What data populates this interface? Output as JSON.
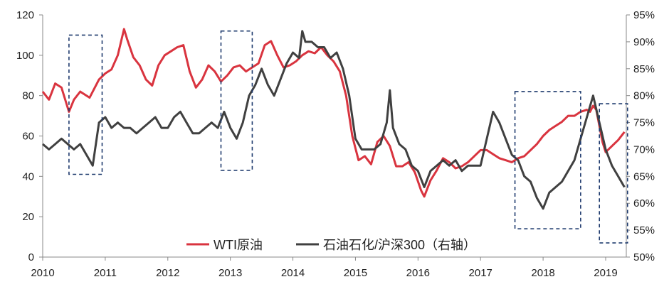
{
  "chart_data": {
    "type": "line",
    "title": "",
    "x_ticks": [
      "2010",
      "2011",
      "2012",
      "2013",
      "2014",
      "2015",
      "2016",
      "2017",
      "2018",
      "2019"
    ],
    "left_axis": {
      "min": 0,
      "max": 120,
      "ticks": [
        "0",
        "20",
        "40",
        "60",
        "80",
        "100",
        "120"
      ]
    },
    "right_axis": {
      "min": 50,
      "max": 95,
      "ticks": [
        "50%",
        "55%",
        "60%",
        "65%",
        "70%",
        "75%",
        "80%",
        "85%",
        "90%",
        "95%"
      ]
    },
    "series": [
      {
        "name": "WTI原油",
        "axis": "left",
        "color": "#d9343f",
        "x": [
          2010.0,
          2010.1,
          2010.2,
          2010.3,
          2010.42,
          2010.5,
          2010.6,
          2010.75,
          2010.9,
          2011.0,
          2011.1,
          2011.2,
          2011.3,
          2011.35,
          2011.45,
          2011.55,
          2011.65,
          2011.75,
          2011.85,
          2011.95,
          2012.05,
          2012.15,
          2012.25,
          2012.35,
          2012.45,
          2012.55,
          2012.65,
          2012.75,
          2012.85,
          2012.95,
          2013.05,
          2013.15,
          2013.25,
          2013.35,
          2013.45,
          2013.55,
          2013.65,
          2013.75,
          2013.85,
          2013.95,
          2014.05,
          2014.15,
          2014.25,
          2014.35,
          2014.45,
          2014.55,
          2014.65,
          2014.75,
          2014.85,
          2014.95,
          2015.05,
          2015.15,
          2015.25,
          2015.35,
          2015.45,
          2015.55,
          2015.65,
          2015.75,
          2015.85,
          2015.95,
          2016.05,
          2016.1,
          2016.2,
          2016.3,
          2016.4,
          2016.5,
          2016.6,
          2016.7,
          2016.8,
          2016.9,
          2017.0,
          2017.1,
          2017.2,
          2017.3,
          2017.4,
          2017.5,
          2017.6,
          2017.7,
          2017.8,
          2017.9,
          2018.0,
          2018.1,
          2018.2,
          2018.3,
          2018.4,
          2018.5,
          2018.6,
          2018.7,
          2018.75,
          2018.8,
          2018.85,
          2018.9,
          2018.95,
          2019.0,
          2019.1,
          2019.2,
          2019.3
        ],
        "values": [
          82,
          78,
          86,
          84,
          72,
          78,
          82,
          79,
          88,
          91,
          93,
          100,
          113,
          108,
          99,
          95,
          88,
          85,
          95,
          100,
          102,
          104,
          105,
          92,
          84,
          88,
          95,
          92,
          87,
          90,
          94,
          95,
          92,
          94,
          96,
          105,
          107,
          100,
          94,
          95,
          97,
          100,
          102,
          101,
          104,
          100,
          97,
          92,
          80,
          60,
          48,
          50,
          46,
          57,
          60,
          55,
          45,
          45,
          47,
          42,
          33,
          30,
          38,
          43,
          49,
          47,
          44,
          45,
          47,
          50,
          53,
          53,
          51,
          49,
          48,
          47,
          49,
          50,
          53,
          56,
          60,
          63,
          65,
          67,
          70,
          70,
          72,
          73,
          72,
          75,
          73,
          65,
          57,
          52,
          55,
          58,
          62
        ]
      },
      {
        "name": "石油石化/沪深300（右轴）",
        "axis": "right",
        "color": "#404040",
        "x": [
          2010.0,
          2010.1,
          2010.2,
          2010.3,
          2010.4,
          2010.5,
          2010.6,
          2010.7,
          2010.8,
          2010.85,
          2010.9,
          2011.0,
          2011.1,
          2011.2,
          2011.3,
          2011.4,
          2011.5,
          2011.6,
          2011.7,
          2011.8,
          2011.9,
          2012.0,
          2012.1,
          2012.2,
          2012.3,
          2012.4,
          2012.5,
          2012.6,
          2012.7,
          2012.8,
          2012.9,
          2013.0,
          2013.1,
          2013.2,
          2013.3,
          2013.4,
          2013.5,
          2013.6,
          2013.7,
          2013.8,
          2013.9,
          2014.0,
          2014.1,
          2014.15,
          2014.2,
          2014.3,
          2014.4,
          2014.5,
          2014.6,
          2014.7,
          2014.8,
          2014.9,
          2015.0,
          2015.1,
          2015.2,
          2015.3,
          2015.4,
          2015.5,
          2015.55,
          2015.6,
          2015.7,
          2015.8,
          2015.9,
          2016.0,
          2016.1,
          2016.2,
          2016.3,
          2016.4,
          2016.5,
          2016.6,
          2016.7,
          2016.8,
          2016.9,
          2017.0,
          2017.1,
          2017.2,
          2017.3,
          2017.4,
          2017.5,
          2017.6,
          2017.7,
          2017.8,
          2017.9,
          2018.0,
          2018.1,
          2018.2,
          2018.3,
          2018.4,
          2018.5,
          2018.6,
          2018.7,
          2018.75,
          2018.8,
          2018.9,
          2019.0,
          2019.1,
          2019.2,
          2019.3
        ],
        "values": [
          71,
          70,
          71,
          72,
          71,
          70,
          71,
          69,
          67,
          71,
          75,
          76,
          74,
          75,
          74,
          74,
          73,
          74,
          75,
          76,
          74,
          74,
          76,
          77,
          75,
          73,
          73,
          74,
          75,
          74,
          77,
          74,
          72,
          75,
          80,
          82,
          85,
          82,
          80,
          83,
          86,
          88,
          87,
          92,
          90,
          90,
          89,
          89,
          87,
          88,
          85,
          80,
          72,
          70,
          70,
          70,
          71,
          75,
          81,
          74,
          71,
          70,
          67,
          66,
          63,
          66,
          67,
          68,
          67,
          68,
          66,
          67,
          67,
          67,
          72,
          77,
          75,
          72,
          69,
          68,
          65,
          64,
          61,
          59,
          62,
          63,
          64,
          66,
          68,
          72,
          76,
          78,
          80,
          75,
          70,
          67,
          65,
          63
        ]
      }
    ],
    "annotations": [
      {
        "type": "dashed-box",
        "x_range": [
          2010.42,
          2010.95
        ],
        "left_range": [
          41,
          110
        ]
      },
      {
        "type": "dashed-box",
        "x_range": [
          2012.85,
          2013.35
        ],
        "left_range": [
          43,
          112
        ]
      },
      {
        "type": "dashed-box",
        "x_range": [
          2017.55,
          2018.6
        ],
        "left_range": [
          14,
          82
        ]
      },
      {
        "type": "dashed-box",
        "x_range": [
          2018.9,
          2019.35
        ],
        "left_range": [
          7,
          76
        ]
      }
    ]
  }
}
